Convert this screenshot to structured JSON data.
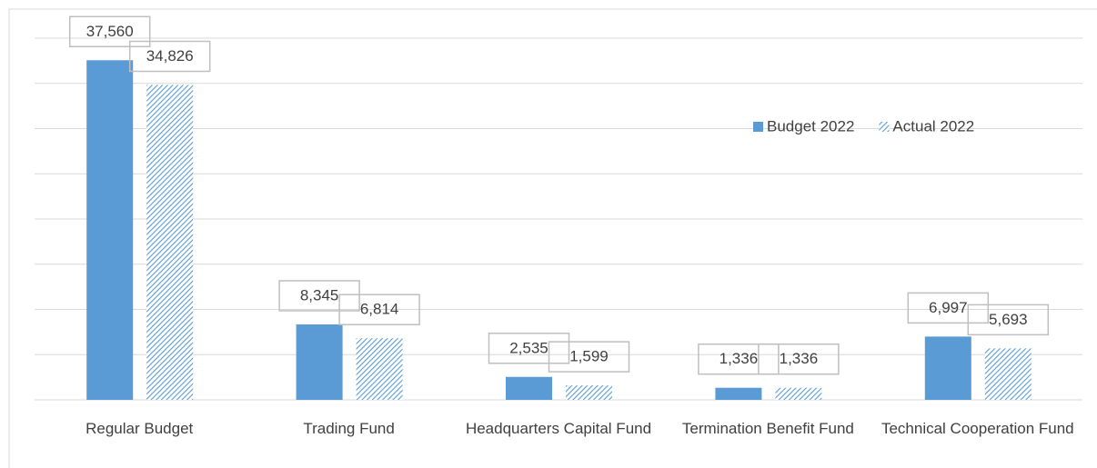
{
  "chart_data": {
    "type": "bar",
    "categories": [
      "Regular Budget",
      "Trading Fund",
      "Headquarters Capital Fund",
      "Termination Benefit Fund",
      "Technical Cooperation Fund"
    ],
    "series": [
      {
        "name": "Budget 2022",
        "color": "#5b9bd5",
        "pattern": "solid",
        "values": [
          37560,
          8345,
          2535,
          1336,
          6997
        ],
        "value_labels": [
          "37,560",
          "8,345",
          "2,535",
          "1,336",
          "6,997"
        ]
      },
      {
        "name": "Actual 2022",
        "color": "#5b9bd5",
        "pattern": "hatch",
        "values": [
          34826,
          6814,
          1599,
          1336,
          5693
        ],
        "value_labels": [
          "34,826",
          "6,814",
          "1,599",
          "1,336",
          "5,693"
        ]
      }
    ],
    "ylim": [
      0,
      40000
    ],
    "yticks": [
      0,
      5000,
      10000,
      15000,
      20000,
      25000,
      30000,
      35000,
      40000
    ],
    "grid": true,
    "legend": "top-right"
  }
}
